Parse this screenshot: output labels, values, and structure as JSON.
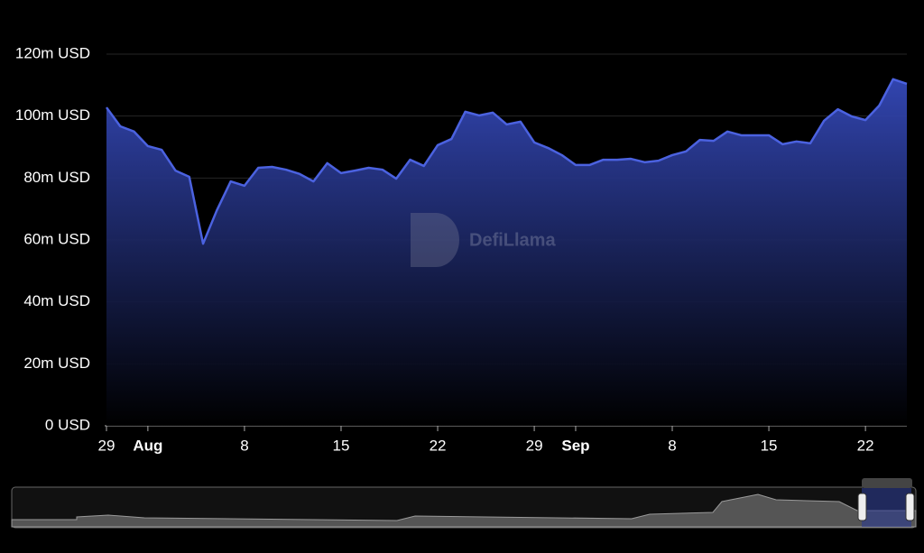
{
  "chart_data": {
    "type": "area",
    "watermark": "DefiLlama",
    "color": "#4b62e0",
    "x": [
      "07-29",
      "07-30",
      "07-31",
      "08-01",
      "08-02",
      "08-03",
      "08-04",
      "08-05",
      "08-06",
      "08-07",
      "08-08",
      "08-09",
      "08-10",
      "08-11",
      "08-12",
      "08-13",
      "08-14",
      "08-15",
      "08-16",
      "08-17",
      "08-18",
      "08-19",
      "08-20",
      "08-21",
      "08-22",
      "08-23",
      "08-24",
      "08-25",
      "08-26",
      "08-27",
      "08-28",
      "08-29",
      "08-30",
      "08-31",
      "09-01",
      "09-02",
      "09-03",
      "09-04",
      "09-05",
      "09-06",
      "09-07",
      "09-08",
      "09-09",
      "09-10",
      "09-11",
      "09-12",
      "09-13",
      "09-14",
      "09-15",
      "09-16",
      "09-17",
      "09-18",
      "09-19",
      "09-20",
      "09-21",
      "09-22",
      "09-23",
      "09-24",
      "09-25"
    ],
    "values": [
      102.8,
      96.7,
      95,
      90.3,
      89.1,
      82.4,
      80.4,
      58.8,
      69.6,
      78.9,
      77.5,
      83.3,
      83.6,
      82.7,
      81.3,
      78.9,
      84.8,
      81.6,
      82.4,
      83.3,
      82.7,
      79.8,
      85.9,
      83.9,
      90.6,
      92.6,
      101.4,
      100.2,
      101.1,
      97.3,
      98.2,
      91.5,
      89.7,
      87.4,
      84.2,
      84.2,
      85.9,
      85.9,
      86.2,
      85.1,
      85.6,
      87.4,
      88.6,
      92.3,
      92,
      95,
      93.8,
      93.8,
      93.8,
      90.9,
      91.8,
      91.2,
      98.5,
      102.2,
      99.9,
      98.7,
      103.4,
      111.9,
      110.4
    ],
    "ylim": [
      0,
      120
    ],
    "yticks": [
      {
        "value": 0,
        "label": "0 USD"
      },
      {
        "value": 20,
        "label": "20m USD"
      },
      {
        "value": 40,
        "label": "40m USD"
      },
      {
        "value": 60,
        "label": "60m USD"
      },
      {
        "value": 80,
        "label": "80m USD"
      },
      {
        "value": 100,
        "label": "100m USD"
      },
      {
        "value": 120,
        "label": "120m USD"
      }
    ],
    "xticks": [
      {
        "value": "07-29",
        "label": "29"
      },
      {
        "value": "08-01",
        "label": "Aug"
      },
      {
        "value": "08-08",
        "label": "8"
      },
      {
        "value": "08-15",
        "label": "15"
      },
      {
        "value": "08-22",
        "label": "22"
      },
      {
        "value": "08-29",
        "label": "29"
      },
      {
        "value": "09-01",
        "label": "Sep"
      },
      {
        "value": "09-08",
        "label": "8"
      },
      {
        "value": "09-15",
        "label": "15"
      },
      {
        "value": "09-22",
        "label": "22"
      }
    ],
    "grid": true
  }
}
